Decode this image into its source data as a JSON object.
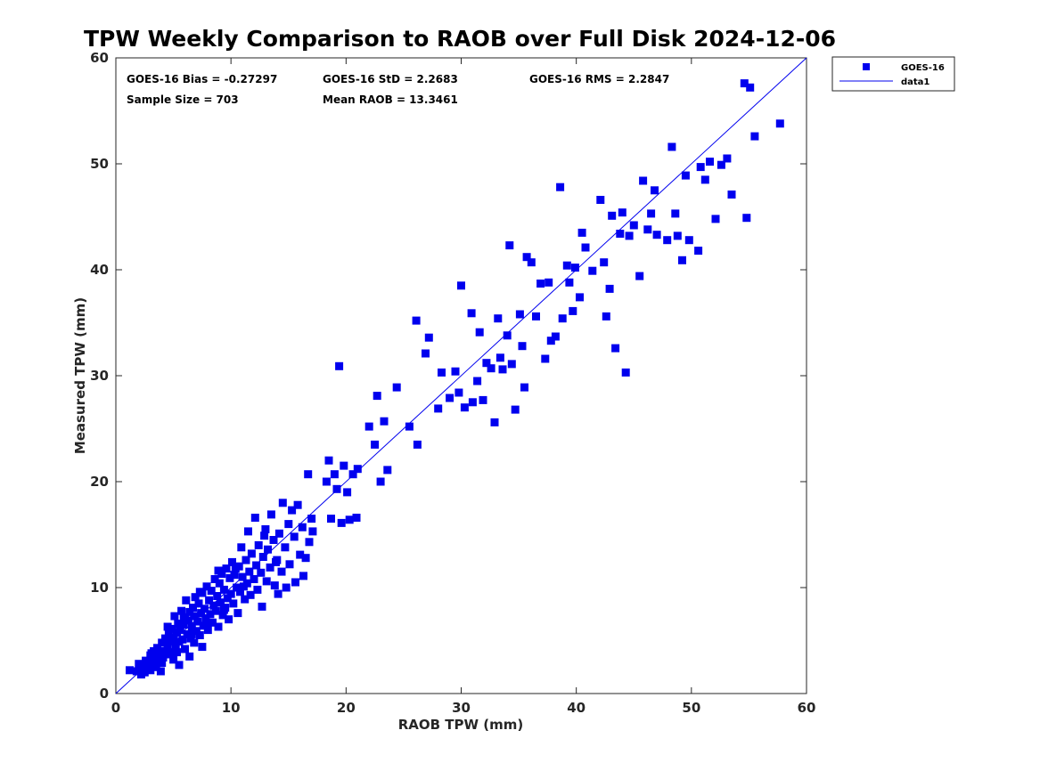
{
  "chart_data": {
    "type": "scatter",
    "title": "TPW Weekly Comparison to RAOB over Full Disk 2024-12-06",
    "xlabel": "RAOB TPW (mm)",
    "ylabel": "Measured TPW (mm)",
    "xlim": [
      0,
      60
    ],
    "ylim": [
      0,
      60
    ],
    "xticks": [
      "0",
      "10",
      "20",
      "30",
      "40",
      "50",
      "60"
    ],
    "yticks": [
      "0",
      "10",
      "20",
      "30",
      "40",
      "50",
      "60"
    ],
    "grid": false,
    "legend_position": "outside-top-right",
    "stats": {
      "bias": "GOES-16 Bias = -0.27297",
      "std": "GOES-16 StD = 2.2683",
      "rms": "GOES-16 RMS = 2.2847",
      "sample": "Sample Size = 703",
      "mean": "Mean RAOB = 13.3461"
    },
    "series": [
      {
        "name": "GOES-16",
        "kind": "scatter",
        "color": "#0000ee",
        "points": [
          [
            1.2,
            2.2
          ],
          [
            1.8,
            2.1
          ],
          [
            2.0,
            2.8
          ],
          [
            2.2,
            1.8
          ],
          [
            2.3,
            2.4
          ],
          [
            2.5,
            2.0
          ],
          [
            2.6,
            3.1
          ],
          [
            2.8,
            2.5
          ],
          [
            3.0,
            2.2
          ],
          [
            3.0,
            3.6
          ],
          [
            3.2,
            2.9
          ],
          [
            3.3,
            4.0
          ],
          [
            3.4,
            3.3
          ],
          [
            3.5,
            2.5
          ],
          [
            3.6,
            4.3
          ],
          [
            3.7,
            3.0
          ],
          [
            3.8,
            3.7
          ],
          [
            3.9,
            2.1
          ],
          [
            4.0,
            4.8
          ],
          [
            4.1,
            3.4
          ],
          [
            4.2,
            4.0
          ],
          [
            4.3,
            5.2
          ],
          [
            4.4,
            3.7
          ],
          [
            4.5,
            4.5
          ],
          [
            4.6,
            5.6
          ],
          [
            4.7,
            3.9
          ],
          [
            4.8,
            4.9
          ],
          [
            4.9,
            6.1
          ],
          [
            5.0,
            3.2
          ],
          [
            5.0,
            5.3
          ],
          [
            5.1,
            7.3
          ],
          [
            5.2,
            4.4
          ],
          [
            5.3,
            5.8
          ],
          [
            5.4,
            6.6
          ],
          [
            5.5,
            2.7
          ],
          [
            5.5,
            4.9
          ],
          [
            5.6,
            6.0
          ],
          [
            5.7,
            7.8
          ],
          [
            5.8,
            5.1
          ],
          [
            5.9,
            6.5
          ],
          [
            6.0,
            4.2
          ],
          [
            6.0,
            7.0
          ],
          [
            6.1,
            8.8
          ],
          [
            6.2,
            5.6
          ],
          [
            6.3,
            6.9
          ],
          [
            6.4,
            3.5
          ],
          [
            6.4,
            7.7
          ],
          [
            6.5,
            5.2
          ],
          [
            6.6,
            6.3
          ],
          [
            6.7,
            8.1
          ],
          [
            6.8,
            4.8
          ],
          [
            6.8,
            7.3
          ],
          [
            6.9,
            9.1
          ],
          [
            7.0,
            5.9
          ],
          [
            7.1,
            6.8
          ],
          [
            7.2,
            8.5
          ],
          [
            7.3,
            5.5
          ],
          [
            7.4,
            7.6
          ],
          [
            7.5,
            4.4
          ],
          [
            7.5,
            9.5
          ],
          [
            7.6,
            6.4
          ],
          [
            7.7,
            8.0
          ],
          [
            7.8,
            7.1
          ],
          [
            7.9,
            10.1
          ],
          [
            8.0,
            6.0
          ],
          [
            8.1,
            8.8
          ],
          [
            8.2,
            7.5
          ],
          [
            8.3,
            9.7
          ],
          [
            8.4,
            6.7
          ],
          [
            8.5,
            8.3
          ],
          [
            8.6,
            10.8
          ],
          [
            8.7,
            7.8
          ],
          [
            8.8,
            9.2
          ],
          [
            8.9,
            6.3
          ],
          [
            9.0,
            10.4
          ],
          [
            9.1,
            8.6
          ],
          [
            9.2,
            11.3
          ],
          [
            9.3,
            7.4
          ],
          [
            9.4,
            9.8
          ],
          [
            9.5,
            8.1
          ],
          [
            9.6,
            11.8
          ],
          [
            9.7,
            9.0
          ],
          [
            9.8,
            7.0
          ],
          [
            9.9,
            10.9
          ],
          [
            10.0,
            9.4
          ],
          [
            10.1,
            12.4
          ],
          [
            10.2,
            8.5
          ],
          [
            10.3,
            11.2
          ],
          [
            10.5,
            10.0
          ],
          [
            10.6,
            7.6
          ],
          [
            10.7,
            12.0
          ],
          [
            10.8,
            9.6
          ],
          [
            10.9,
            13.8
          ],
          [
            11.0,
            11.0
          ],
          [
            11.2,
            8.9
          ],
          [
            11.3,
            12.6
          ],
          [
            11.4,
            10.4
          ],
          [
            11.5,
            15.3
          ],
          [
            11.6,
            11.5
          ],
          [
            11.7,
            9.3
          ],
          [
            11.8,
            13.2
          ],
          [
            12.0,
            10.8
          ],
          [
            12.1,
            16.6
          ],
          [
            12.2,
            12.1
          ],
          [
            12.3,
            9.8
          ],
          [
            12.4,
            14.0
          ],
          [
            12.6,
            11.4
          ],
          [
            12.7,
            8.2
          ],
          [
            12.8,
            12.9
          ],
          [
            13.0,
            15.5
          ],
          [
            13.1,
            10.6
          ],
          [
            13.2,
            13.6
          ],
          [
            13.4,
            11.9
          ],
          [
            13.5,
            16.9
          ],
          [
            13.7,
            14.5
          ],
          [
            13.8,
            10.2
          ],
          [
            14.0,
            12.6
          ],
          [
            14.1,
            9.4
          ],
          [
            14.2,
            15.1
          ],
          [
            14.4,
            11.5
          ],
          [
            14.5,
            18.0
          ],
          [
            14.7,
            13.8
          ],
          [
            14.8,
            10.0
          ],
          [
            15.0,
            16.0
          ],
          [
            15.1,
            12.2
          ],
          [
            15.3,
            17.3
          ],
          [
            15.5,
            14.8
          ],
          [
            15.6,
            10.5
          ],
          [
            15.8,
            17.8
          ],
          [
            16.0,
            13.1
          ],
          [
            16.2,
            15.7
          ],
          [
            16.3,
            11.1
          ],
          [
            16.5,
            12.8
          ],
          [
            16.7,
            20.7
          ],
          [
            16.8,
            14.3
          ],
          [
            17.0,
            16.5
          ],
          [
            17.1,
            15.3
          ],
          [
            18.3,
            20.0
          ],
          [
            18.5,
            22.0
          ],
          [
            18.7,
            16.5
          ],
          [
            19.0,
            20.7
          ],
          [
            19.2,
            19.3
          ],
          [
            19.4,
            30.9
          ],
          [
            19.6,
            16.1
          ],
          [
            19.8,
            21.5
          ],
          [
            20.1,
            19.0
          ],
          [
            20.3,
            16.4
          ],
          [
            20.6,
            20.7
          ],
          [
            20.9,
            16.6
          ],
          [
            21.0,
            21.2
          ],
          [
            22.0,
            25.2
          ],
          [
            22.5,
            23.5
          ],
          [
            22.7,
            28.1
          ],
          [
            23.0,
            20.0
          ],
          [
            23.3,
            25.7
          ],
          [
            23.6,
            21.1
          ],
          [
            24.4,
            28.9
          ],
          [
            25.5,
            25.2
          ],
          [
            26.1,
            35.2
          ],
          [
            26.2,
            23.5
          ],
          [
            26.9,
            32.1
          ],
          [
            27.2,
            33.6
          ],
          [
            28.0,
            26.9
          ],
          [
            28.3,
            30.3
          ],
          [
            29.0,
            27.9
          ],
          [
            29.5,
            30.4
          ],
          [
            29.8,
            28.4
          ],
          [
            30.0,
            38.5
          ],
          [
            30.3,
            27.0
          ],
          [
            30.9,
            35.9
          ],
          [
            31.0,
            27.5
          ],
          [
            31.4,
            29.5
          ],
          [
            31.6,
            34.1
          ],
          [
            31.9,
            27.7
          ],
          [
            32.2,
            31.2
          ],
          [
            32.6,
            30.7
          ],
          [
            32.9,
            25.6
          ],
          [
            33.2,
            35.4
          ],
          [
            33.4,
            31.7
          ],
          [
            33.6,
            30.6
          ],
          [
            34.0,
            33.8
          ],
          [
            34.2,
            42.3
          ],
          [
            34.4,
            31.1
          ],
          [
            34.7,
            26.8
          ],
          [
            35.1,
            35.8
          ],
          [
            35.3,
            32.8
          ],
          [
            35.5,
            28.9
          ],
          [
            35.7,
            41.2
          ],
          [
            36.1,
            40.7
          ],
          [
            36.5,
            35.6
          ],
          [
            36.9,
            38.7
          ],
          [
            37.3,
            31.6
          ],
          [
            37.6,
            38.8
          ],
          [
            37.8,
            33.3
          ],
          [
            38.2,
            33.7
          ],
          [
            38.6,
            47.8
          ],
          [
            38.8,
            35.4
          ],
          [
            39.2,
            40.4
          ],
          [
            39.4,
            38.8
          ],
          [
            39.7,
            36.1
          ],
          [
            39.9,
            40.2
          ],
          [
            40.3,
            37.4
          ],
          [
            40.5,
            43.5
          ],
          [
            40.8,
            42.1
          ],
          [
            41.4,
            39.9
          ],
          [
            42.1,
            46.6
          ],
          [
            42.4,
            40.7
          ],
          [
            42.6,
            35.6
          ],
          [
            42.9,
            38.2
          ],
          [
            43.1,
            45.1
          ],
          [
            43.4,
            32.6
          ],
          [
            43.8,
            43.4
          ],
          [
            44.0,
            45.4
          ],
          [
            44.3,
            30.3
          ],
          [
            44.6,
            43.2
          ],
          [
            45.0,
            44.2
          ],
          [
            45.5,
            39.4
          ],
          [
            45.8,
            48.4
          ],
          [
            46.2,
            43.8
          ],
          [
            46.5,
            45.3
          ],
          [
            46.8,
            47.5
          ],
          [
            47.0,
            43.3
          ],
          [
            47.9,
            42.8
          ],
          [
            48.3,
            51.6
          ],
          [
            48.6,
            45.3
          ],
          [
            48.8,
            43.2
          ],
          [
            49.2,
            40.9
          ],
          [
            49.5,
            48.9
          ],
          [
            49.8,
            42.8
          ],
          [
            50.6,
            41.8
          ],
          [
            50.8,
            49.7
          ],
          [
            51.2,
            48.5
          ],
          [
            51.6,
            50.2
          ],
          [
            52.1,
            44.8
          ],
          [
            52.6,
            49.9
          ],
          [
            53.1,
            50.5
          ],
          [
            53.5,
            47.1
          ],
          [
            54.6,
            57.6
          ],
          [
            54.8,
            44.9
          ],
          [
            55.1,
            57.2
          ],
          [
            55.5,
            52.6
          ],
          [
            57.7,
            53.8
          ],
          [
            3.1,
            3.8
          ],
          [
            4.5,
            6.3
          ],
          [
            5.9,
            7.2
          ],
          [
            7.3,
            9.6
          ],
          [
            8.9,
            11.6
          ],
          [
            10.4,
            11.8
          ],
          [
            12.9,
            14.9
          ],
          [
            6.6,
            5.6
          ],
          [
            7.9,
            6.7
          ],
          [
            9.4,
            7.9
          ],
          [
            11.1,
            10.1
          ],
          [
            13.9,
            12.4
          ],
          [
            5.3,
            3.9
          ],
          [
            4.0,
            2.9
          ]
        ]
      },
      {
        "name": "data1",
        "kind": "line",
        "color": "#0000ee",
        "points": [
          [
            0,
            0
          ],
          [
            60,
            60
          ]
        ]
      }
    ]
  }
}
